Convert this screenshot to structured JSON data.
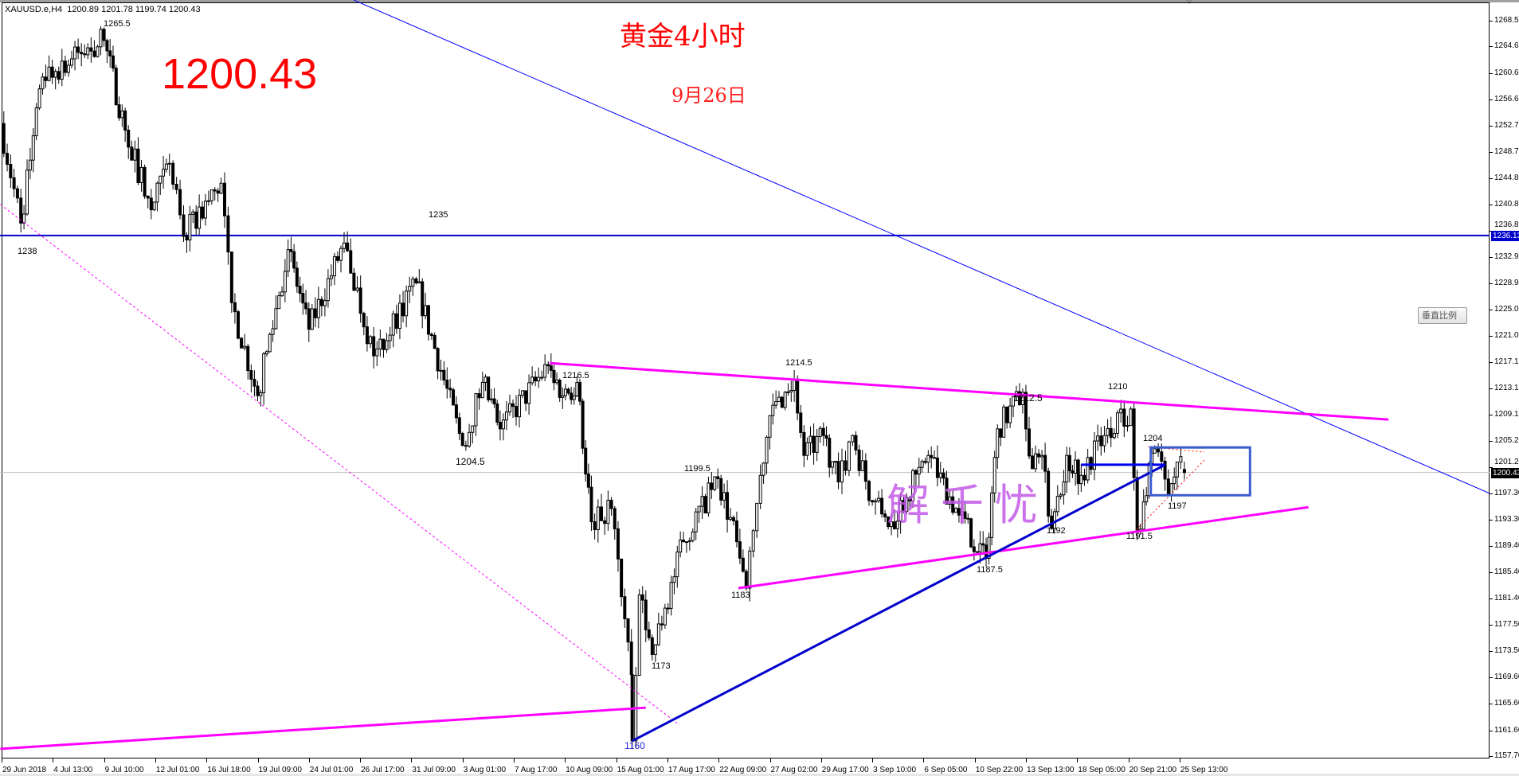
{
  "header": {
    "symbol": "XAUUSD.e,H4",
    "ohlc": "1200.89 1201.78 1199.74 1200.43"
  },
  "overlay_text": {
    "big_price": "1200.43",
    "title": "黄金4小时",
    "date": "9月26日",
    "watermark": "解千忧"
  },
  "vertical_scale_button": "垂直比例",
  "colors": {
    "resistance_lines": "#ff00ff",
    "trend_lines": "#0000cc",
    "box": "#3a5bd0",
    "triangle": "#ff0000",
    "bid_line": "#c0c0c0",
    "headline": "#ff0000"
  },
  "chart_data": {
    "type": "candlestick",
    "symbol": "XAUUSD.e",
    "timeframe": "H4",
    "ylim": [
      1157.35,
      1271.6
    ],
    "grid": false,
    "y_ticks": [
      "1268.50",
      "1264.60",
      "1260.60",
      "1256.60",
      "1252.70",
      "1248.70",
      "1244.80",
      "1240.80",
      "1236.80",
      "1232.90",
      "1228.90",
      "1225.00",
      "1221.00",
      "1217.10",
      "1213.10",
      "1209.10",
      "1205.20",
      "1201.20",
      "1197.30",
      "1193.30",
      "1189.40",
      "1185.40",
      "1181.40",
      "1177.50",
      "1173.50",
      "1169.60",
      "1165.60",
      "1161.60",
      "1157.70"
    ],
    "x_ticks": [
      {
        "label": "29 Jun 2018",
        "time": "2018-06-29 00:00"
      },
      {
        "label": "4 Jul 13:00",
        "time": "2018-07-04 13:00"
      },
      {
        "label": "9 Jul 10:00",
        "time": "2018-07-09 10:00"
      },
      {
        "label": "12 Jul 01:00",
        "time": "2018-07-12 01:00"
      },
      {
        "label": "16 Jul 18:00",
        "time": "2018-07-16 18:00"
      },
      {
        "label": "19 Jul 09:00",
        "time": "2018-07-19 09:00"
      },
      {
        "label": "24 Jul 01:00",
        "time": "2018-07-24 01:00"
      },
      {
        "label": "26 Jul 17:00",
        "time": "2018-07-26 17:00"
      },
      {
        "label": "31 Jul 09:00",
        "time": "2018-07-31 09:00"
      },
      {
        "label": "3 Aug 01:00",
        "time": "2018-08-03 01:00"
      },
      {
        "label": "7 Aug 17:00",
        "time": "2018-08-07 17:00"
      },
      {
        "label": "10 Aug 09:00",
        "time": "2018-08-10 09:00"
      },
      {
        "label": "15 Aug 01:00",
        "time": "2018-08-15 01:00"
      },
      {
        "label": "17 Aug 17:00",
        "time": "2018-08-17 17:00"
      },
      {
        "label": "22 Aug 09:00",
        "time": "2018-08-22 09:00"
      },
      {
        "label": "27 Aug 02:00",
        "time": "2018-08-27 02:00"
      },
      {
        "label": "29 Aug 17:00",
        "time": "2018-08-29 17:00"
      },
      {
        "label": "3 Sep 10:00",
        "time": "2018-09-03 10:00"
      },
      {
        "label": "6 Sep 05:00",
        "time": "2018-09-06 05:00"
      },
      {
        "label": "10 Sep 22:00",
        "time": "2018-09-10 22:00"
      },
      {
        "label": "13 Sep 13:00",
        "time": "2018-09-13 13:00"
      },
      {
        "label": "18 Sep 05:00",
        "time": "2018-09-18 05:00"
      },
      {
        "label": "20 Sep 21:00",
        "time": "2018-09-20 21:00"
      },
      {
        "label": "25 Sep 13:00",
        "time": "2018-09-25 13:00"
      }
    ],
    "price_path": [
      [
        "2018-06-28 22:00",
        1253
      ],
      [
        "2018-07-02 08:00",
        1238
      ],
      [
        "2018-07-03 20:00",
        1260
      ],
      [
        "2018-07-09 10:00",
        1265.5
      ],
      [
        "2018-07-10 12:00",
        1252
      ],
      [
        "2018-07-11 20:00",
        1240
      ],
      [
        "2018-07-12 19:00",
        1247
      ],
      [
        "2018-07-13 13:00",
        1236
      ],
      [
        "2018-07-17 12:00",
        1244
      ],
      [
        "2018-07-18 01:00",
        1226
      ],
      [
        "2018-07-19 09:00",
        1212
      ],
      [
        "2018-07-20 23:00",
        1234
      ],
      [
        "2018-07-24 01:00",
        1222
      ],
      [
        "2018-07-25 21:00",
        1235
      ],
      [
        "2018-07-27 10:00",
        1218
      ],
      [
        "2018-07-31 15:00",
        1229
      ],
      [
        "2018-08-03 01:00",
        1204.5
      ],
      [
        "2018-08-06 02:00",
        1214
      ],
      [
        "2018-08-07 00:00",
        1207
      ],
      [
        "2018-08-09 12:00",
        1216.5
      ],
      [
        "2018-08-10 06:00",
        1212
      ],
      [
        "2018-08-13 00:00",
        1214
      ],
      [
        "2018-08-13 18:00",
        1193
      ],
      [
        "2018-08-14 19:00",
        1195
      ],
      [
        "2018-08-15 20:00",
        1170
      ],
      [
        "2018-08-15 21:00",
        1160
      ],
      [
        "2018-08-16 06:00",
        1182
      ],
      [
        "2018-08-16 22:00",
        1173
      ],
      [
        "2018-08-17 14:00",
        1180
      ],
      [
        "2018-08-20 13:00",
        1190
      ],
      [
        "2018-08-22 08:00",
        1199.5
      ],
      [
        "2018-08-23 08:00",
        1190
      ],
      [
        "2018-08-23 20:00",
        1183
      ],
      [
        "2018-08-24 14:00",
        1200
      ],
      [
        "2018-08-27 02:00",
        1209
      ],
      [
        "2018-08-28 08:00",
        1214.5
      ],
      [
        "2018-08-28 20:00",
        1203
      ],
      [
        "2018-08-29 20:00",
        1206
      ],
      [
        "2018-08-30 15:00",
        1199
      ],
      [
        "2018-08-31 09:00",
        1206
      ],
      [
        "2018-09-03 10:00",
        1196
      ],
      [
        "2018-09-04 11:00",
        1193
      ],
      [
        "2018-09-06 11:00",
        1203
      ],
      [
        "2018-09-10 02:00",
        1194
      ],
      [
        "2018-09-11 12:00",
        1187.5
      ],
      [
        "2018-09-12 02:00",
        1207
      ],
      [
        "2018-09-13 09:00",
        1212.5
      ],
      [
        "2018-09-13 21:00",
        1201
      ],
      [
        "2018-09-14 09:00",
        1203
      ],
      [
        "2018-09-14 21:00",
        1192
      ],
      [
        "2018-09-17 16:00",
        1203
      ],
      [
        "2018-09-18 10:00",
        1200
      ],
      [
        "2018-09-19 15:00",
        1206
      ],
      [
        "2018-09-21 00:00",
        1210
      ],
      [
        "2018-09-21 08:00",
        1191.5
      ],
      [
        "2018-09-21 16:00",
        1196
      ],
      [
        "2018-09-24 06:00",
        1204
      ],
      [
        "2018-09-24 23:00",
        1197
      ],
      [
        "2018-09-25 10:00",
        1202
      ],
      [
        "2018-09-25 19:00",
        1200.43
      ]
    ],
    "last_bar": {
      "open": 1200.89,
      "high": 1201.78,
      "low": 1199.74,
      "close": 1200.43
    },
    "bid": 1200.43,
    "horizontal_line": {
      "price": 1236.13,
      "label": "1236.13"
    },
    "trendlines": [
      {
        "name": "long-downtrend",
        "style": "thin",
        "color": "#0000ff",
        "from": [
          "2018-07-26 09:00",
          1271.6
        ],
        "to": [
          "2018-10-17 18:00",
          1197.2
        ]
      },
      {
        "name": "triangle-upper",
        "style": "thick",
        "color": "#ff00ff",
        "from": [
          "2018-08-09 14:00",
          1216.9
        ],
        "to": [
          "2018-10-10 10:00",
          1208.4
        ]
      },
      {
        "name": "triangle-lower",
        "style": "thick",
        "color": "#ff00ff",
        "from": [
          "2018-08-23 10:00",
          1183
        ],
        "to": [
          "2018-10-04 06:00",
          1195.2
        ]
      },
      {
        "name": "bottom-support",
        "style": "thick",
        "color": "#ff00ff",
        "from": [
          "2018-06-28 22:00",
          1158.8
        ],
        "to": [
          "2018-08-16 14:00",
          1165.0
        ]
      },
      {
        "name": "channel-dashed",
        "style": "dashed",
        "color": "#ff00ff",
        "from": [
          "2018-06-28 22:00",
          1240.8
        ],
        "to": [
          "2018-08-20 08:00",
          1162.4
        ]
      },
      {
        "name": "uptrend",
        "style": "thick",
        "color": "#0000cc",
        "from": [
          "2018-08-15 21:00",
          1160
        ],
        "to": [
          "2018-09-24 19:00",
          1201.6
        ]
      },
      {
        "name": "neckline",
        "style": "thick",
        "color": "#0000ee",
        "from": [
          "2018-09-18 10:00",
          1201.6
        ],
        "to": [
          "2018-09-24 19:00",
          1201.6
        ]
      },
      {
        "name": "small-triangle-top",
        "style": "dotted",
        "color": "#ff0000",
        "from": [
          "2018-09-21 22:00",
          1204.3
        ],
        "to": [
          "2018-09-26 20:00",
          1203.5
        ]
      },
      {
        "name": "small-triangle-bottom",
        "style": "dotted",
        "color": "#ff0000",
        "from": [
          "2018-09-21 07:00",
          1191.8
        ],
        "to": [
          "2018-09-26 20:00",
          1202.3
        ]
      }
    ],
    "rectangle": {
      "from": [
        "2018-09-24 01:00",
        1204.2
      ],
      "to": [
        "2018-10-01 05:00",
        1197.0
      ]
    },
    "annotations": [
      "1265.5",
      "1238",
      "1235",
      "1216.5",
      "1204.5",
      "1214.5",
      "1212.5",
      "1210",
      "1204",
      "1199.5",
      "1197",
      "1192",
      "1191.5",
      "1187.5",
      "1183",
      "1173",
      "1160"
    ]
  }
}
